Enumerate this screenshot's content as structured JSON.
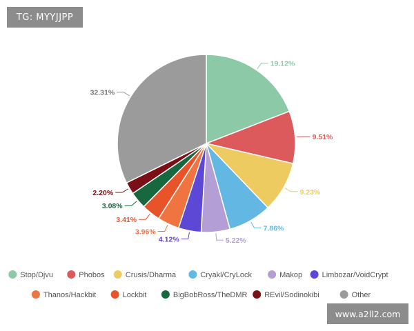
{
  "watermarks": {
    "tag": "TG: MYYJJPP",
    "url": "www.a2ll2.com"
  },
  "chart_data": {
    "type": "pie",
    "title": "",
    "legend_position": "bottom",
    "slices": [
      {
        "name": "Stop/Djvu",
        "value": 19.12,
        "label": "19.12%",
        "color": "#8cc9a7"
      },
      {
        "name": "Phobos",
        "value": 9.51,
        "label": "9.51%",
        "color": "#dc5a5c"
      },
      {
        "name": "Crusis/Dharma",
        "value": 9.23,
        "label": "9.23%",
        "color": "#eecb60"
      },
      {
        "name": "Cryakl/CryLock",
        "value": 7.86,
        "label": "7.86%",
        "color": "#63b8e3"
      },
      {
        "name": "Makop",
        "value": 5.22,
        "label": "5.22%",
        "color": "#b39fd6"
      },
      {
        "name": "Limbozar/VoidCrypt",
        "value": 4.12,
        "label": "4.12%",
        "color": "#5d48d6"
      },
      {
        "name": "Thanos/Hackbit",
        "value": 3.96,
        "label": "3.96%",
        "color": "#f0743f"
      },
      {
        "name": "Lockbit",
        "value": 3.41,
        "label": "3.41%",
        "color": "#e8542a"
      },
      {
        "name": "BigBobRoss/TheDMR",
        "value": 3.08,
        "label": "3.08%",
        "color": "#17683f"
      },
      {
        "name": "REvil/Sodinokibi",
        "value": 2.2,
        "label": "2.20%",
        "color": "#7a1016"
      },
      {
        "name": "Other",
        "value": 32.31,
        "label": "32.31%",
        "color": "#9b9b9b"
      }
    ]
  }
}
